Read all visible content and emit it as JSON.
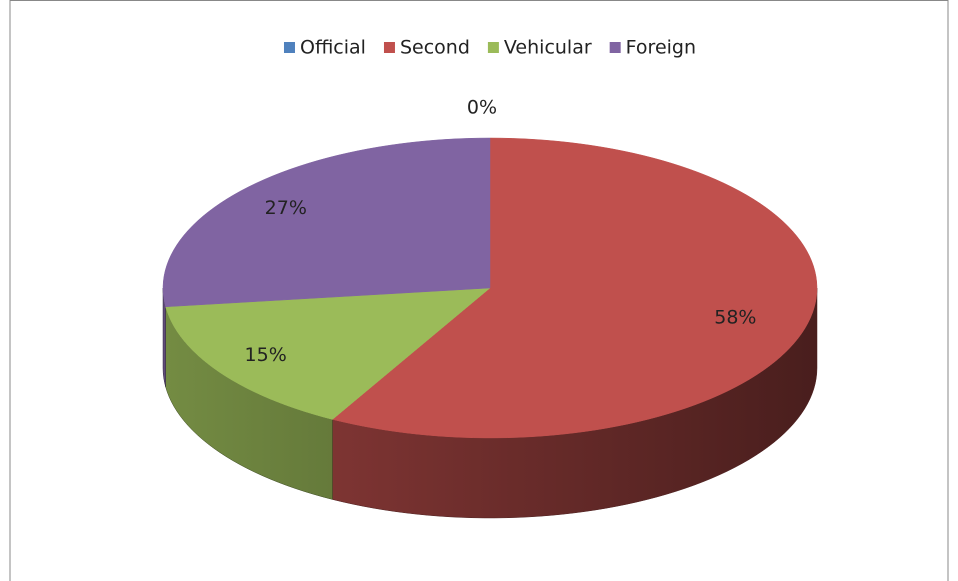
{
  "chart_data": {
    "type": "pie",
    "categories": [
      "Official",
      "Second",
      "Vehicular",
      "Foreign"
    ],
    "values": [
      0,
      58,
      15,
      27
    ],
    "value_labels": [
      "0%",
      "58%",
      "15%",
      "27%"
    ],
    "colors": [
      "#4f81bd",
      "#c0504d",
      "#9bbb59",
      "#8064a2"
    ],
    "legend": "top"
  }
}
